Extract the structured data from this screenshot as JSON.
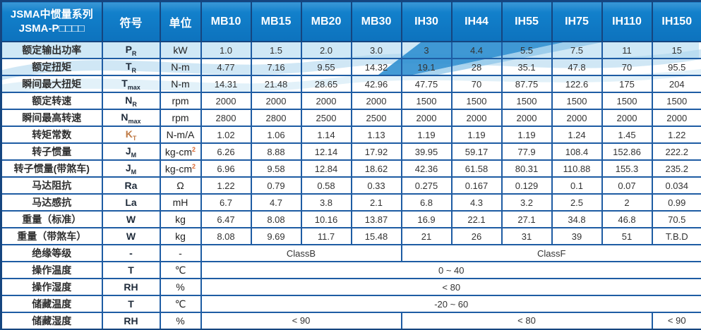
{
  "header": {
    "title_line1": "JSMA中惯量系列",
    "title_line2": "JSMA-P□□□□",
    "symbol_col": "符号",
    "unit_col": "单位",
    "models": [
      "MB10",
      "MB15",
      "MB20",
      "MB30",
      "IH30",
      "IH44",
      "IH55",
      "IH75",
      "IH110",
      "IH150"
    ]
  },
  "rows": [
    {
      "label": "额定输出功率",
      "symbol": "P",
      "sub": "R",
      "unit": "kW",
      "cells": [
        "1.0",
        "1.5",
        "2.0",
        "3.0",
        "3",
        "4.4",
        "5.5",
        "7.5",
        "11",
        "15"
      ]
    },
    {
      "label": "额定扭矩",
      "symbol": "T",
      "sub": "R",
      "unit": "N-m",
      "cells": [
        "4.77",
        "7.16",
        "9.55",
        "14.32",
        "19.1",
        "28",
        "35.1",
        "47.8",
        "70",
        "95.5"
      ]
    },
    {
      "label": "瞬间最大扭矩",
      "symbol": "T",
      "sub": "max",
      "unit": "N-m",
      "cells": [
        "14.31",
        "21.48",
        "28.65",
        "42.96",
        "47.75",
        "70",
        "87.75",
        "122.6",
        "175",
        "204"
      ]
    },
    {
      "label": "额定转速",
      "symbol": "N",
      "sub": "R",
      "unit": "rpm",
      "cells": [
        "2000",
        "2000",
        "2000",
        "2000",
        "1500",
        "1500",
        "1500",
        "1500",
        "1500",
        "1500"
      ]
    },
    {
      "label": "瞬间最高转速",
      "symbol": "N",
      "sub": "max",
      "unit": "rpm",
      "cells": [
        "2800",
        "2800",
        "2500",
        "2500",
        "2000",
        "2000",
        "2000",
        "2000",
        "2000",
        "2000"
      ]
    },
    {
      "label": "转矩常数",
      "symbol": "K",
      "sub": "T",
      "symbol_color": "#bf7a45",
      "unit": "N-m/A",
      "cells": [
        "1.02",
        "1.06",
        "1.14",
        "1.13",
        "1.19",
        "1.19",
        "1.19",
        "1.24",
        "1.45",
        "1.22"
      ]
    },
    {
      "label": "转子惯量",
      "symbol": "J",
      "sub": "M",
      "unit": "kg-cm",
      "unit_sup": "2",
      "cells": [
        "6.26",
        "8.88",
        "12.14",
        "17.92",
        "39.95",
        "59.17",
        "77.9",
        "108.4",
        "152.86",
        "222.2"
      ]
    },
    {
      "label": "转子惯量(带煞车)",
      "symbol": "J",
      "sub": "M",
      "unit": "kg-cm",
      "unit_sup": "2",
      "cells": [
        "6.96",
        "9.58",
        "12.84",
        "18.62",
        "42.36",
        "61.58",
        "80.31",
        "110.88",
        "155.3",
        "235.2"
      ]
    },
    {
      "label": "马达阻抗",
      "symbol": "Ra",
      "unit": "Ω",
      "cells": [
        "1.22",
        "0.79",
        "0.58",
        "0.33",
        "0.275",
        "0.167",
        "0.129",
        "0.1",
        "0.07",
        "0.034"
      ]
    },
    {
      "label": "马达感抗",
      "symbol": "La",
      "unit": "mH",
      "cells": [
        "6.7",
        "4.7",
        "3.8",
        "2.1",
        "6.8",
        "4.3",
        "3.2",
        "2.5",
        "2",
        "0.99"
      ]
    },
    {
      "label": "重量（标准）",
      "symbol": "W",
      "unit": "kg",
      "cells": [
        "6.47",
        "8.08",
        "10.16",
        "13.87",
        "16.9",
        "22.1",
        "27.1",
        "34.8",
        "46.8",
        "70.5"
      ]
    },
    {
      "label": "重量（带煞车）",
      "symbol": "W",
      "unit": "kg",
      "cells": [
        "8.08",
        "9.69",
        "11.7",
        "15.48",
        "21",
        "26",
        "31",
        "39",
        "51",
        "T.B.D"
      ]
    },
    {
      "label": "绝缘等级",
      "symbol": "-",
      "unit": "-",
      "cells": [
        {
          "t": "ClassB",
          "span": 4
        },
        {
          "t": "ClassF",
          "span": 6
        }
      ]
    },
    {
      "label": "操作温度",
      "symbol": "T",
      "unit": "℃",
      "cells": [
        {
          "t": "0 ~ 40",
          "span": 10
        }
      ]
    },
    {
      "label": "操作湿度",
      "symbol": "RH",
      "unit": "%",
      "cells": [
        {
          "t": "< 80",
          "span": 10
        }
      ]
    },
    {
      "label": "储藏温度",
      "symbol": "T",
      "unit": "℃",
      "cells": [
        {
          "t": "-20 ~ 60",
          "span": 10
        }
      ]
    },
    {
      "label": "储藏湿度",
      "symbol": "RH",
      "unit": "%",
      "cells": [
        {
          "t": "< 90",
          "span": 4
        },
        {
          "t": "< 80",
          "span": 5
        },
        {
          "t": "< 90",
          "span": 1
        }
      ]
    }
  ],
  "colors": {
    "header_blue": "#0d72bd",
    "grid_blue": "#1e5ca3",
    "outer_border": "#15457f",
    "wave_light": "#cfe8f6",
    "wave_mid": "#a9d4ec",
    "swoosh_blue": "#2f8fd0",
    "kt_symbol_color": "#bf7a45",
    "unit_superscript_color": "#d9662e",
    "header_text": "#ffffff",
    "body_text": "#333333"
  }
}
